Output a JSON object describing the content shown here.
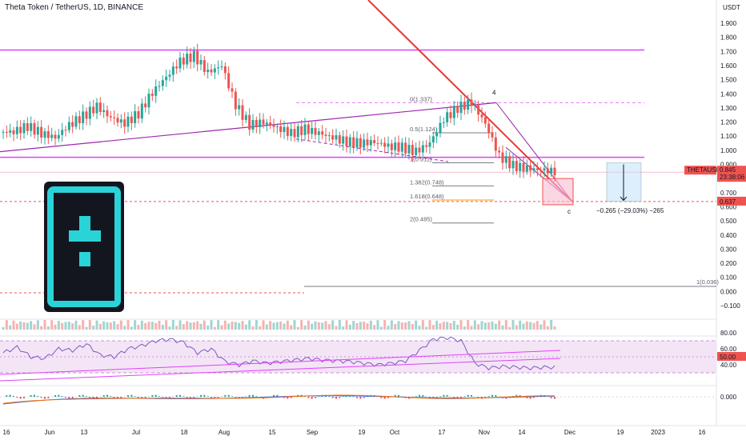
{
  "header": {
    "title": "Theta Token / TetherUS, 1D, BINANCE",
    "currency": "USDT"
  },
  "colors": {
    "up": "#26a69a",
    "down": "#ef5350",
    "magenta": "#e040fb",
    "trendline": "#e53935",
    "purple_line": "#9c27b0",
    "rsi_band": "#f3e5f5",
    "logo_bg": "#13161f",
    "logo_accent": "#2ad3d8"
  },
  "chart_data": [
    {
      "type": "line",
      "title": "",
      "price_axis_ticks": [
        "1.900",
        "1.800",
        "1.700",
        "1.600",
        "1.500",
        "1.400",
        "1.300",
        "1.200",
        "1.100",
        "1.000",
        "0.900",
        "0.800",
        "0.700",
        "0.600",
        "0.500",
        "0.400",
        "0.300",
        "0.200",
        "0.100",
        "0.000",
        "−0.100"
      ],
      "x_ticks": [
        "16",
        "Jun",
        "13",
        "Jul",
        "18",
        "Aug",
        "15",
        "Sep",
        "19",
        "Oct",
        "17",
        "Nov",
        "14",
        "Dec",
        "19",
        "2023",
        "16"
      ],
      "series": [
        {
          "name": "THETAUSDT",
          "values": [
            1.13,
            1.17,
            1.12,
            1.09,
            1.18,
            1.24,
            1.31,
            1.23,
            1.19,
            1.26,
            1.41,
            1.52,
            1.63,
            1.67,
            1.55,
            1.6,
            1.32,
            1.18,
            1.2,
            1.16,
            1.12,
            1.15,
            1.12,
            1.09,
            1.06,
            1.05,
            1.06,
            1.03,
            1.02,
            0.99,
            1.05,
            1.22,
            1.3,
            1.34,
            1.19,
            0.96,
            0.89,
            0.87,
            0.86,
            0.85
          ]
        }
      ],
      "annotations": {
        "current_price_label": "THETAUSDT",
        "current_price": "0.845",
        "countdown": "23:38:06",
        "target_price": "0.637",
        "highlight_price": "50.00",
        "level_label": "1(0.036)",
        "measure_text": "−0.265 (−29.03%) −265",
        "wave_top": "4",
        "wave_bottom": "c"
      },
      "fib_levels": [
        {
          "label": "0(1.337)",
          "value": 1.337
        },
        {
          "label": "0.5(1.124)",
          "value": 1.124
        },
        {
          "label": "1(0.911)",
          "value": 0.911
        },
        {
          "label": "1.382(0.748)",
          "value": 0.748
        },
        {
          "label": "1.618(0.648)",
          "value": 0.648
        },
        {
          "label": "2(0.485)",
          "value": 0.485
        }
      ],
      "horizontal_levels": [
        1.71,
        0.95,
        0.036
      ],
      "ylim": [
        -0.1,
        1.9
      ]
    },
    {
      "type": "line",
      "title": "",
      "rsi_axis_ticks": [
        "80.00",
        "60.00",
        "40.00"
      ],
      "series": [
        {
          "name": "",
          "values": [
            55,
            62,
            50,
            48,
            60,
            58,
            66,
            52,
            50,
            60,
            64,
            70,
            72,
            68,
            55,
            60,
            44,
            40,
            45,
            42,
            44,
            46,
            48,
            46,
            45,
            44,
            42,
            40,
            42,
            45,
            58,
            72,
            74,
            70,
            42,
            36,
            38,
            37,
            36,
            37
          ]
        }
      ],
      "ylim": [
        20,
        90
      ]
    },
    {
      "type": "line",
      "title": "",
      "macd_axis_ticks": [
        "0.000"
      ],
      "ylim": [
        -0.06,
        0.05
      ]
    }
  ]
}
